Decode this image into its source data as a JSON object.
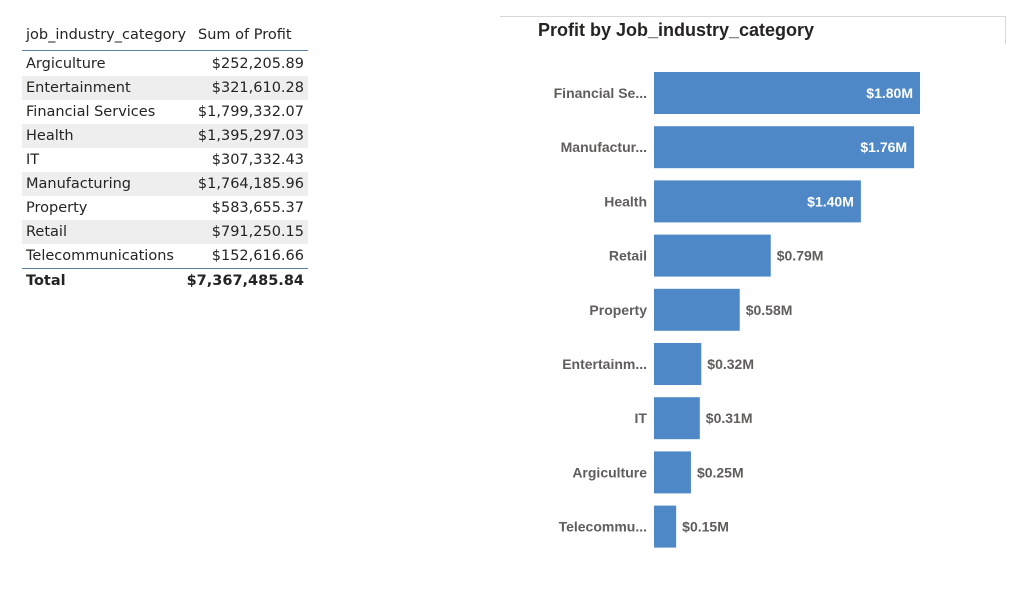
{
  "table": {
    "col_category": "job_industry_category",
    "col_value": "Sum of Profit",
    "rows": [
      {
        "category": "Argiculture",
        "value": "$252,205.89"
      },
      {
        "category": "Entertainment",
        "value": "$321,610.28"
      },
      {
        "category": "Financial Services",
        "value": "$1,799,332.07"
      },
      {
        "category": "Health",
        "value": "$1,395,297.03"
      },
      {
        "category": "IT",
        "value": "$307,332.43"
      },
      {
        "category": "Manufacturing",
        "value": "$1,764,185.96"
      },
      {
        "category": "Property",
        "value": "$583,655.37"
      },
      {
        "category": "Retail",
        "value": "$791,250.15"
      },
      {
        "category": "Telecommunications",
        "value": "$152,616.66"
      }
    ],
    "total_label": "Total",
    "total_value": "$7,367,485.84"
  },
  "chart_data": {
    "type": "bar",
    "orientation": "horizontal",
    "title": "Profit by Job_industry_category",
    "categories": [
      "Financial Se...",
      "Manufactur...",
      "Health",
      "Retail",
      "Property",
      "Entertainm...",
      "IT",
      "Argiculture",
      "Telecommu..."
    ],
    "values": [
      1.8,
      1.76,
      1.4,
      0.79,
      0.58,
      0.32,
      0.31,
      0.25,
      0.15
    ],
    "data_labels": [
      "$1.80M",
      "$1.76M",
      "$1.40M",
      "$0.79M",
      "$0.58M",
      "$0.32M",
      "$0.31M",
      "$0.25M",
      "$0.15M"
    ],
    "xlabel": "",
    "ylabel": "",
    "xlim": [
      0,
      1.8
    ],
    "grid": false,
    "bar_color": "#4f88c7",
    "inside_label_color": "#ffffff",
    "outside_label_color": "#605e5c"
  }
}
